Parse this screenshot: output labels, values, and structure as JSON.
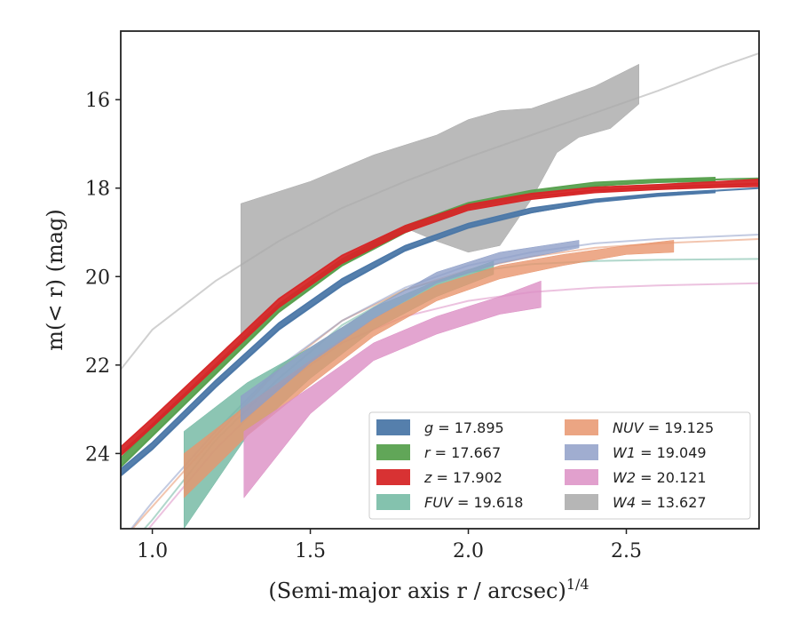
{
  "chart_data": {
    "type": "area",
    "xlabel": "(Semi-major axis r / arcsec)",
    "xlabel_superscript": "1/4",
    "ylabel": "m(< r) (mag)",
    "xlim": [
      0.9,
      2.92
    ],
    "ylim": [
      25.7,
      14.45
    ],
    "y_inverted": true,
    "grid": false,
    "legend_position": "lower-right",
    "x_ticks": [
      {
        "value": 1.0,
        "label": "1.0"
      },
      {
        "value": 1.5,
        "label": "1.5"
      },
      {
        "value": 2.0,
        "label": "2.0"
      },
      {
        "value": 2.5,
        "label": "2.5"
      }
    ],
    "y_ticks": [
      {
        "value": 16,
        "label": "16"
      },
      {
        "value": 18,
        "label": "18"
      },
      {
        "value": 20,
        "label": "20"
      },
      {
        "value": 22,
        "label": "22"
      },
      {
        "value": 24,
        "label": "24"
      }
    ],
    "series": [
      {
        "name": "g",
        "value": "17.895",
        "color": "#4c78a8",
        "model": [
          [
            0.9,
            24.5
          ],
          [
            1.0,
            23.9
          ],
          [
            1.2,
            22.5
          ],
          [
            1.4,
            21.2
          ],
          [
            1.6,
            20.2
          ],
          [
            1.8,
            19.4
          ],
          [
            2.0,
            18.9
          ],
          [
            2.2,
            18.55
          ],
          [
            2.4,
            18.3
          ],
          [
            2.6,
            18.15
          ],
          [
            2.8,
            18.05
          ],
          [
            2.92,
            18.0
          ]
        ],
        "band_upper": [
          [
            0.9,
            24.35
          ],
          [
            1.0,
            23.75
          ],
          [
            1.2,
            22.35
          ],
          [
            1.4,
            21.05
          ],
          [
            1.6,
            20.05
          ],
          [
            1.8,
            19.3
          ],
          [
            2.0,
            18.8
          ],
          [
            2.2,
            18.45
          ],
          [
            2.4,
            18.25
          ],
          [
            2.6,
            18.12
          ],
          [
            2.78,
            18.05
          ]
        ],
        "band_lower": [
          [
            0.9,
            24.5
          ],
          [
            1.0,
            23.9
          ],
          [
            1.2,
            22.5
          ],
          [
            1.4,
            21.2
          ],
          [
            1.6,
            20.2
          ],
          [
            1.8,
            19.42
          ],
          [
            2.0,
            18.9
          ],
          [
            2.2,
            18.55
          ],
          [
            2.4,
            18.32
          ],
          [
            2.6,
            18.18
          ],
          [
            2.78,
            18.1
          ]
        ]
      },
      {
        "name": "r",
        "value": "17.667",
        "color": "#59a14f",
        "model": [
          [
            0.9,
            24.3
          ],
          [
            1.0,
            23.6
          ],
          [
            1.2,
            22.2
          ],
          [
            1.4,
            20.8
          ],
          [
            1.6,
            19.75
          ],
          [
            1.8,
            19.0
          ],
          [
            2.0,
            18.45
          ],
          [
            2.2,
            18.15
          ],
          [
            2.4,
            17.95
          ],
          [
            2.6,
            17.85
          ],
          [
            2.8,
            17.8
          ],
          [
            2.92,
            17.78
          ]
        ],
        "band_upper": [
          [
            0.9,
            24.1
          ],
          [
            1.0,
            23.4
          ],
          [
            1.2,
            22.0
          ],
          [
            1.4,
            20.62
          ],
          [
            1.6,
            19.6
          ],
          [
            1.8,
            18.85
          ],
          [
            2.0,
            18.33
          ],
          [
            2.2,
            18.05
          ],
          [
            2.4,
            17.87
          ],
          [
            2.6,
            17.8
          ],
          [
            2.78,
            17.76
          ]
        ],
        "band_lower": [
          [
            0.9,
            24.3
          ],
          [
            1.0,
            23.6
          ],
          [
            1.2,
            22.2
          ],
          [
            1.4,
            20.8
          ],
          [
            1.6,
            19.75
          ],
          [
            1.8,
            19.0
          ],
          [
            2.0,
            18.45
          ],
          [
            2.2,
            18.15
          ],
          [
            2.4,
            17.95
          ],
          [
            2.6,
            17.87
          ],
          [
            2.78,
            17.84
          ]
        ]
      },
      {
        "name": "z",
        "value": "17.902",
        "color": "#d62728",
        "model": [
          [
            0.9,
            24.0
          ],
          [
            1.0,
            23.35
          ],
          [
            1.2,
            22.0
          ],
          [
            1.4,
            20.65
          ],
          [
            1.6,
            19.65
          ],
          [
            1.8,
            18.95
          ],
          [
            2.0,
            18.45
          ],
          [
            2.2,
            18.2
          ],
          [
            2.4,
            18.05
          ],
          [
            2.6,
            17.98
          ],
          [
            2.8,
            17.93
          ],
          [
            2.92,
            17.9
          ]
        ],
        "band_upper": [
          [
            0.9,
            23.85
          ],
          [
            1.0,
            23.2
          ],
          [
            1.2,
            21.85
          ],
          [
            1.4,
            20.5
          ],
          [
            1.6,
            19.52
          ],
          [
            1.8,
            18.85
          ],
          [
            2.0,
            18.37
          ],
          [
            2.2,
            18.12
          ],
          [
            2.4,
            17.98
          ],
          [
            2.6,
            17.92
          ],
          [
            2.8,
            17.85
          ],
          [
            2.92,
            17.8
          ]
        ],
        "band_lower": [
          [
            0.9,
            24.05
          ],
          [
            1.0,
            23.4
          ],
          [
            1.2,
            22.05
          ],
          [
            1.4,
            20.7
          ],
          [
            1.6,
            19.7
          ],
          [
            1.8,
            19.0
          ],
          [
            2.0,
            18.5
          ],
          [
            2.2,
            18.25
          ],
          [
            2.4,
            18.1
          ],
          [
            2.6,
            18.03
          ],
          [
            2.8,
            17.98
          ],
          [
            2.92,
            17.96
          ]
        ]
      },
      {
        "name": "FUV",
        "value": "19.618",
        "color": "#6fb7a0",
        "model": [
          [
            0.9,
            26.3
          ],
          [
            1.0,
            25.5
          ],
          [
            1.2,
            23.7
          ],
          [
            1.4,
            22.3
          ],
          [
            1.6,
            21.1
          ],
          [
            1.8,
            20.3
          ],
          [
            2.0,
            19.9
          ],
          [
            2.2,
            19.72
          ],
          [
            2.4,
            19.65
          ],
          [
            2.6,
            19.62
          ],
          [
            2.92,
            19.6
          ]
        ],
        "band_upper": [
          [
            1.1,
            23.5
          ],
          [
            1.3,
            22.4
          ],
          [
            1.5,
            21.6
          ],
          [
            1.7,
            20.7
          ],
          [
            1.9,
            20.1
          ],
          [
            2.08,
            19.65
          ]
        ],
        "band_lower": [
          [
            1.1,
            25.7
          ],
          [
            1.3,
            23.6
          ],
          [
            1.5,
            22.3
          ],
          [
            1.7,
            21.2
          ],
          [
            1.9,
            20.45
          ],
          [
            2.08,
            19.95
          ]
        ]
      },
      {
        "name": "NUV",
        "value": "19.125",
        "color": "#e8956d",
        "model": [
          [
            0.9,
            26.0
          ],
          [
            1.0,
            25.2
          ],
          [
            1.2,
            23.6
          ],
          [
            1.4,
            22.1
          ],
          [
            1.6,
            21.0
          ],
          [
            1.8,
            20.3
          ],
          [
            2.0,
            19.85
          ],
          [
            2.2,
            19.55
          ],
          [
            2.4,
            19.35
          ],
          [
            2.6,
            19.25
          ],
          [
            2.92,
            19.15
          ]
        ],
        "band_upper": [
          [
            1.1,
            24.0
          ],
          [
            1.3,
            22.9
          ],
          [
            1.5,
            21.9
          ],
          [
            1.7,
            20.95
          ],
          [
            1.9,
            20.2
          ],
          [
            2.1,
            19.75
          ],
          [
            2.3,
            19.5
          ],
          [
            2.5,
            19.3
          ],
          [
            2.65,
            19.18
          ]
        ],
        "band_lower": [
          [
            1.1,
            25.0
          ],
          [
            1.3,
            23.6
          ],
          [
            1.5,
            22.45
          ],
          [
            1.7,
            21.35
          ],
          [
            1.9,
            20.55
          ],
          [
            2.1,
            20.05
          ],
          [
            2.3,
            19.75
          ],
          [
            2.5,
            19.5
          ],
          [
            2.65,
            19.45
          ]
        ]
      },
      {
        "name": "W1",
        "value": "19.049",
        "color": "#8f9fc8",
        "model": [
          [
            0.9,
            26.0
          ],
          [
            1.0,
            25.1
          ],
          [
            1.2,
            23.5
          ],
          [
            1.4,
            22.05
          ],
          [
            1.6,
            21.0
          ],
          [
            1.8,
            20.25
          ],
          [
            2.0,
            19.75
          ],
          [
            2.2,
            19.45
          ],
          [
            2.4,
            19.25
          ],
          [
            2.6,
            19.15
          ],
          [
            2.92,
            19.05
          ]
        ],
        "band_upper": [
          [
            1.28,
            22.7
          ],
          [
            1.5,
            21.6
          ],
          [
            1.7,
            20.7
          ],
          [
            1.9,
            19.9
          ],
          [
            2.1,
            19.45
          ],
          [
            2.35,
            19.18
          ]
        ],
        "band_lower": [
          [
            1.28,
            23.3
          ],
          [
            1.5,
            21.95
          ],
          [
            1.7,
            20.95
          ],
          [
            1.9,
            20.15
          ],
          [
            2.1,
            19.7
          ],
          [
            2.35,
            19.35
          ]
        ]
      },
      {
        "name": "W2",
        "value": "20.121",
        "color": "#dc8fc4",
        "model": [
          [
            0.9,
            26.5
          ],
          [
            1.0,
            25.6
          ],
          [
            1.2,
            23.9
          ],
          [
            1.4,
            22.5
          ],
          [
            1.6,
            21.5
          ],
          [
            1.8,
            20.9
          ],
          [
            2.0,
            20.55
          ],
          [
            2.2,
            20.35
          ],
          [
            2.4,
            20.25
          ],
          [
            2.6,
            20.2
          ],
          [
            2.92,
            20.15
          ]
        ],
        "band_upper": [
          [
            1.29,
            23.5
          ],
          [
            1.5,
            22.5
          ],
          [
            1.7,
            21.5
          ],
          [
            1.9,
            20.9
          ],
          [
            2.1,
            20.45
          ],
          [
            2.23,
            20.1
          ]
        ],
        "band_lower": [
          [
            1.29,
            25.0
          ],
          [
            1.5,
            23.1
          ],
          [
            1.7,
            21.9
          ],
          [
            1.9,
            21.3
          ],
          [
            2.1,
            20.85
          ],
          [
            2.23,
            20.7
          ]
        ]
      },
      {
        "name": "W4",
        "value": "13.627",
        "color": "#a9a9a9",
        "model": [
          [
            0.9,
            22.1
          ],
          [
            1.0,
            21.2
          ],
          [
            1.2,
            20.1
          ],
          [
            1.4,
            19.2
          ],
          [
            1.6,
            18.45
          ],
          [
            1.8,
            17.85
          ],
          [
            2.0,
            17.3
          ],
          [
            2.2,
            16.8
          ],
          [
            2.4,
            16.3
          ],
          [
            2.6,
            15.8
          ],
          [
            2.8,
            15.25
          ],
          [
            2.92,
            14.95
          ]
        ],
        "band_upper": [
          [
            1.28,
            18.35
          ],
          [
            1.5,
            17.85
          ],
          [
            1.7,
            17.25
          ],
          [
            1.9,
            16.8
          ],
          [
            2.0,
            16.45
          ],
          [
            2.1,
            16.25
          ],
          [
            2.2,
            16.2
          ],
          [
            2.3,
            15.95
          ],
          [
            2.4,
            15.7
          ],
          [
            2.54,
            15.2
          ]
        ],
        "band_lower": [
          [
            1.28,
            21.6
          ],
          [
            1.4,
            20.5
          ],
          [
            1.6,
            19.5
          ],
          [
            1.8,
            18.9
          ],
          [
            1.9,
            19.2
          ],
          [
            2.0,
            19.45
          ],
          [
            2.1,
            19.3
          ],
          [
            2.2,
            18.25
          ],
          [
            2.28,
            17.2
          ],
          [
            2.35,
            16.85
          ],
          [
            2.45,
            16.65
          ],
          [
            2.54,
            16.1
          ]
        ]
      }
    ]
  }
}
